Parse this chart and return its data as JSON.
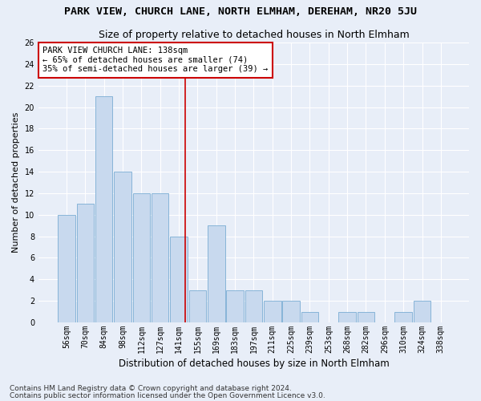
{
  "title": "PARK VIEW, CHURCH LANE, NORTH ELMHAM, DEREHAM, NR20 5JU",
  "subtitle": "Size of property relative to detached houses in North Elmham",
  "xlabel": "Distribution of detached houses by size in North Elmham",
  "ylabel": "Number of detached properties",
  "categories": [
    "56sqm",
    "70sqm",
    "84sqm",
    "98sqm",
    "112sqm",
    "127sqm",
    "141sqm",
    "155sqm",
    "169sqm",
    "183sqm",
    "197sqm",
    "211sqm",
    "225sqm",
    "239sqm",
    "253sqm",
    "268sqm",
    "282sqm",
    "296sqm",
    "310sqm",
    "324sqm",
    "338sqm"
  ],
  "values": [
    10,
    11,
    21,
    14,
    12,
    12,
    8,
    3,
    9,
    3,
    3,
    2,
    2,
    1,
    0,
    1,
    1,
    0,
    1,
    2,
    0
  ],
  "bar_color": "#c8d9ee",
  "bar_edge_color": "#7aadd4",
  "ylim": [
    0,
    26
  ],
  "yticks": [
    0,
    2,
    4,
    6,
    8,
    10,
    12,
    14,
    16,
    18,
    20,
    22,
    24,
    26
  ],
  "annotation_box_text": "PARK VIEW CHURCH LANE: 138sqm\n← 65% of detached houses are smaller (74)\n35% of semi-detached houses are larger (39) →",
  "annotation_box_color": "#ffffff",
  "annotation_box_edge_color": "#cc0000",
  "vline_color": "#cc0000",
  "vline_x": 6.35,
  "footer1": "Contains HM Land Registry data © Crown copyright and database right 2024.",
  "footer2": "Contains public sector information licensed under the Open Government Licence v3.0.",
  "background_color": "#e8eef8",
  "title_fontsize": 9.5,
  "subtitle_fontsize": 9,
  "xlabel_fontsize": 8.5,
  "ylabel_fontsize": 8,
  "tick_fontsize": 7,
  "footer_fontsize": 6.5,
  "annotation_fontsize": 7.5
}
